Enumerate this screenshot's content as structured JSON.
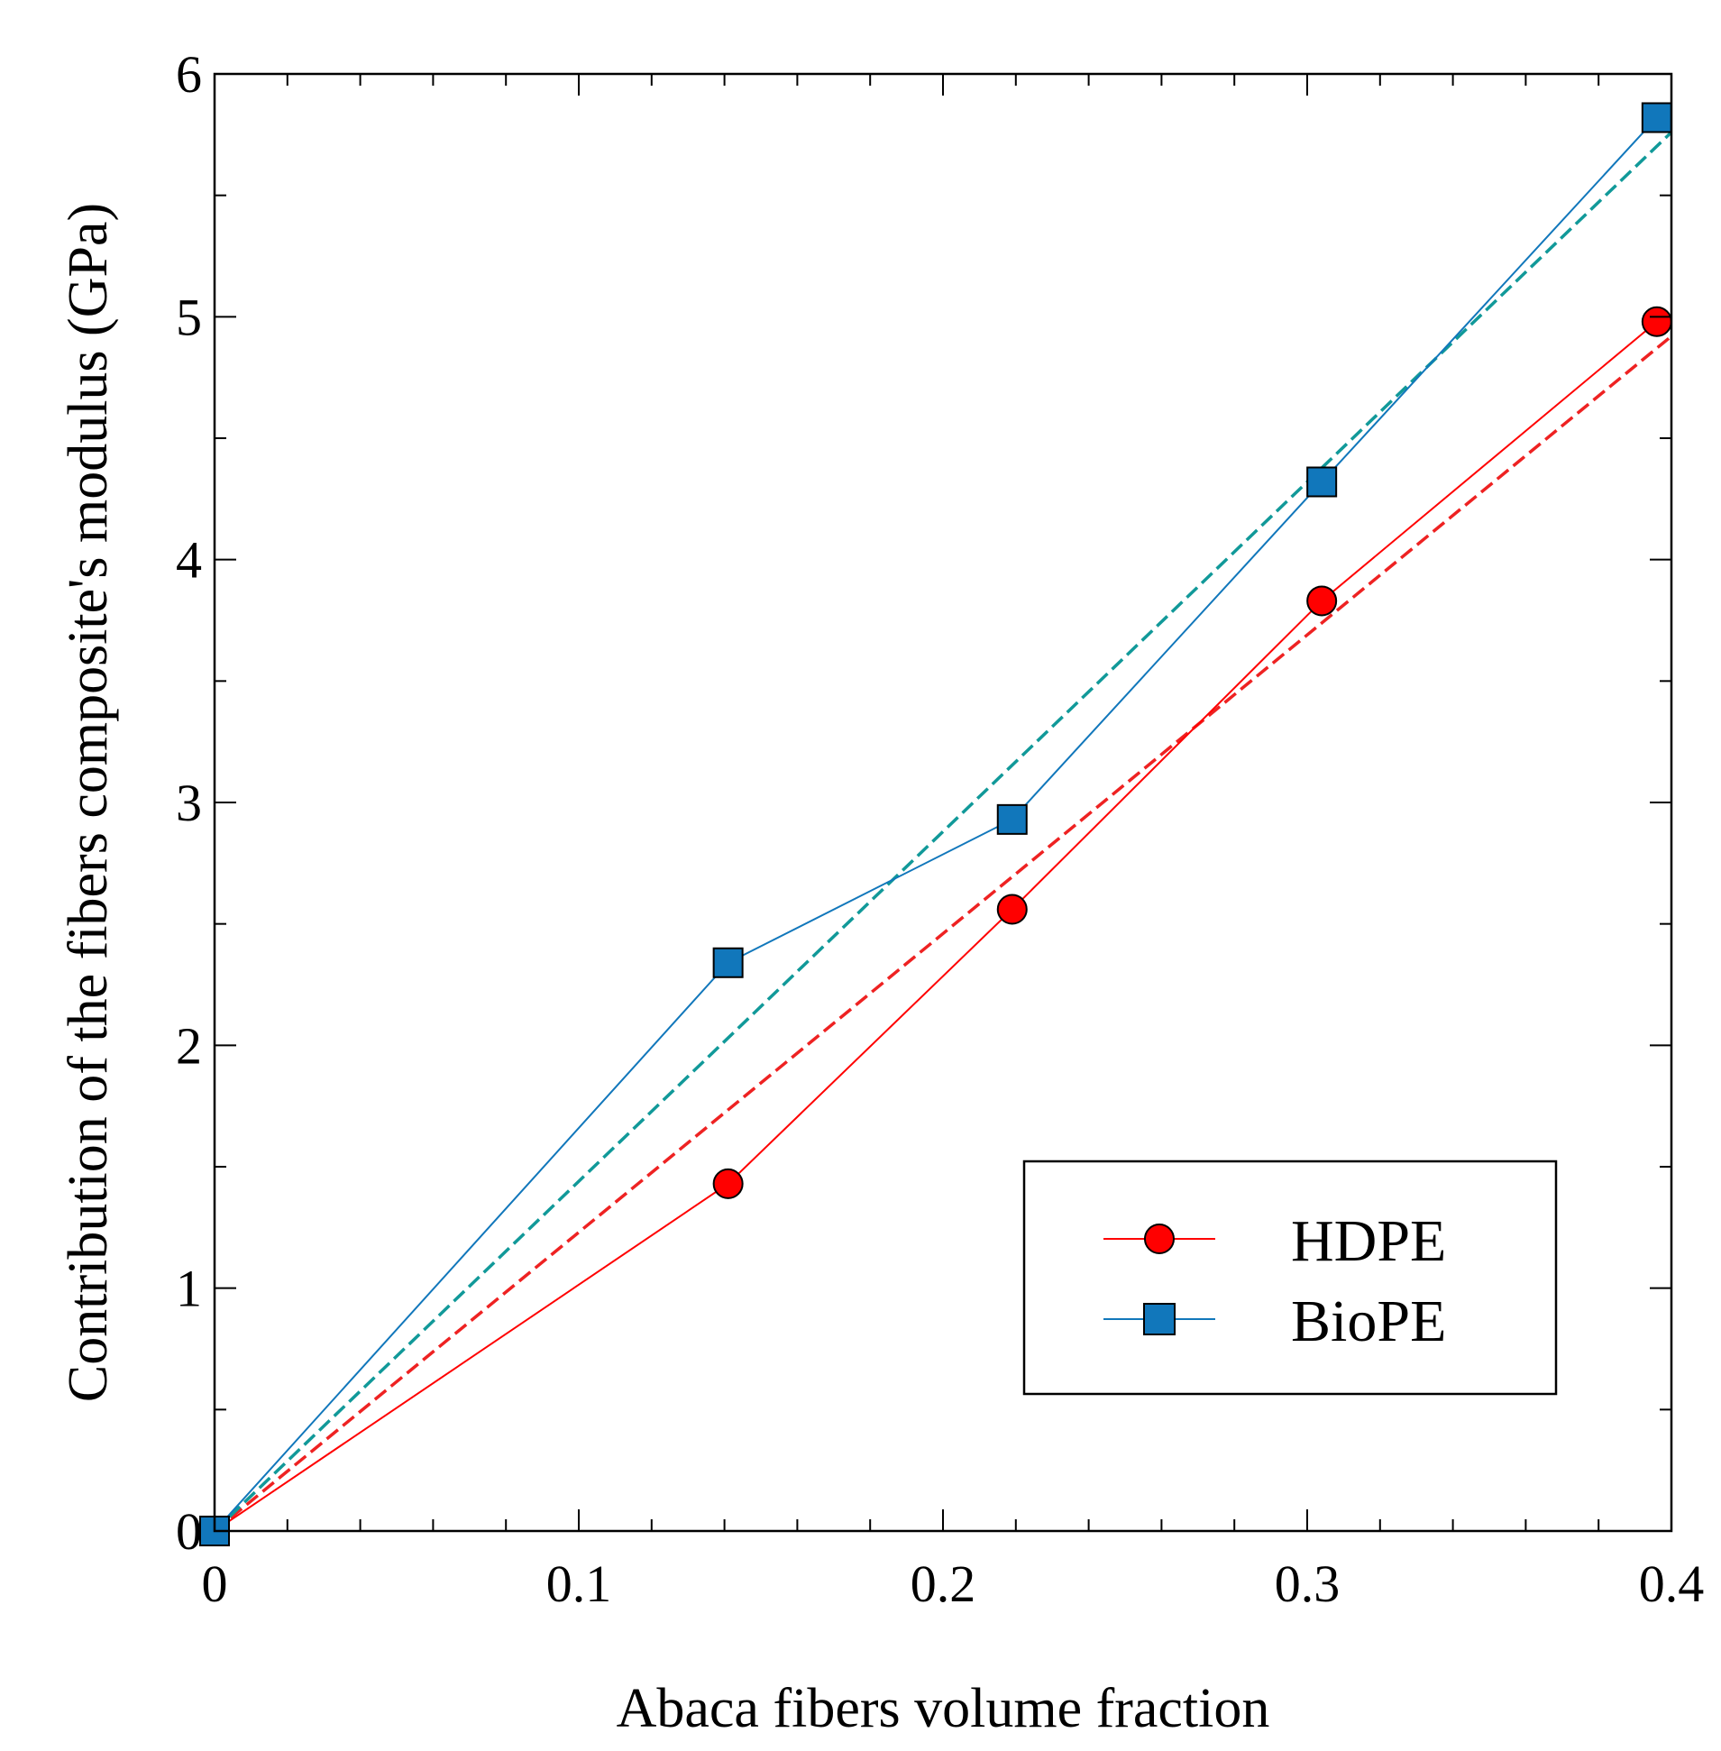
{
  "chart_data": {
    "type": "line",
    "title": "",
    "xlabel": "Abaca fibers volume fraction",
    "ylabel": "Contribution of the fibers composite's modulus (GPa)",
    "xlim": [
      0,
      0.4
    ],
    "ylim": [
      0,
      6
    ],
    "x_ticks": [
      0,
      0.1,
      0.2,
      0.3,
      0.4
    ],
    "x_tick_labels": [
      "0",
      "0.1",
      "0.2",
      "0.3",
      "0.4"
    ],
    "y_ticks": [
      0,
      1,
      2,
      3,
      4,
      5,
      6
    ],
    "y_tick_labels": [
      "0",
      "1",
      "2",
      "3",
      "4",
      "5",
      "6"
    ],
    "grid": false,
    "legend_position": "bottom-right",
    "series": [
      {
        "name": "HDPE",
        "marker": "circle",
        "color": "#ff0000",
        "x": [
          0,
          0.141,
          0.219,
          0.304,
          0.396
        ],
        "y": [
          0,
          1.43,
          2.56,
          3.83,
          4.98
        ],
        "fit": {
          "style": "dashed",
          "color": "#ee2222",
          "slope": 12.3
        }
      },
      {
        "name": "BioPE",
        "marker": "square",
        "color": "#1177bb",
        "x": [
          0,
          0.141,
          0.219,
          0.304,
          0.396
        ],
        "y": [
          0,
          2.34,
          2.93,
          4.32,
          5.82
        ],
        "fit": {
          "style": "dashed",
          "color": "#119999",
          "slope": 14.4
        }
      }
    ]
  }
}
